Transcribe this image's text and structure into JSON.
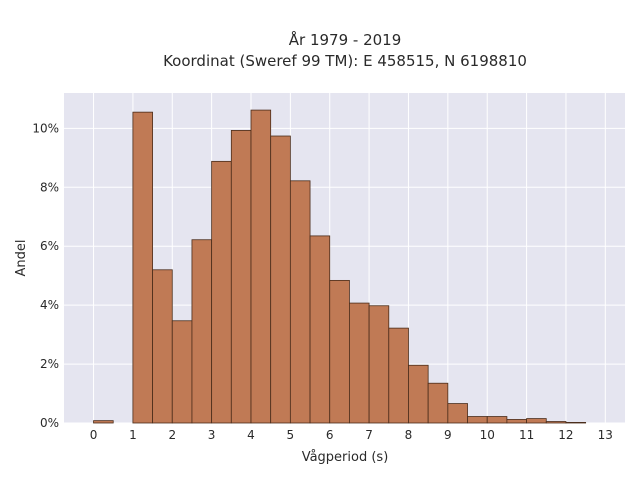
{
  "chart_data": {
    "type": "bar",
    "title_line1": "År 1979 - 2019",
    "title_line2": "Koordinat (Sweref 99 TM): E 458515, N 6198810",
    "xlabel": "Vågperiod (s)",
    "ylabel": "Andel",
    "xlim": [
      -0.75,
      13.5
    ],
    "ylim": [
      0,
      11.2
    ],
    "xticks": [
      0,
      1,
      2,
      3,
      4,
      5,
      6,
      7,
      8,
      9,
      10,
      11,
      12,
      13
    ],
    "yticks": [
      0,
      2,
      4,
      6,
      8,
      10
    ],
    "ytick_suffix": "%",
    "grid": true,
    "bin_width": 0.5,
    "bins": [
      {
        "x0": 0.0,
        "value": 0.08
      },
      {
        "x0": 1.0,
        "value": 10.55
      },
      {
        "x0": 1.5,
        "value": 5.2
      },
      {
        "x0": 2.0,
        "value": 3.47
      },
      {
        "x0": 2.5,
        "value": 6.22
      },
      {
        "x0": 3.0,
        "value": 8.88
      },
      {
        "x0": 3.5,
        "value": 9.93
      },
      {
        "x0": 4.0,
        "value": 10.62
      },
      {
        "x0": 4.5,
        "value": 9.74
      },
      {
        "x0": 5.0,
        "value": 8.22
      },
      {
        "x0": 5.5,
        "value": 6.35
      },
      {
        "x0": 6.0,
        "value": 4.84
      },
      {
        "x0": 6.5,
        "value": 4.07
      },
      {
        "x0": 7.0,
        "value": 3.98
      },
      {
        "x0": 7.5,
        "value": 3.22
      },
      {
        "x0": 8.0,
        "value": 1.96
      },
      {
        "x0": 8.5,
        "value": 1.35
      },
      {
        "x0": 9.0,
        "value": 0.66
      },
      {
        "x0": 9.5,
        "value": 0.22
      },
      {
        "x0": 10.0,
        "value": 0.22
      },
      {
        "x0": 10.5,
        "value": 0.12
      },
      {
        "x0": 11.0,
        "value": 0.15
      },
      {
        "x0": 11.5,
        "value": 0.05
      },
      {
        "x0": 12.0,
        "value": 0.02
      }
    ],
    "colors": {
      "bar_fill": "#c07a55",
      "bar_stroke": "#4a2c1a",
      "plot_bg": "#e5e5f0",
      "grid": "#ffffff"
    }
  }
}
